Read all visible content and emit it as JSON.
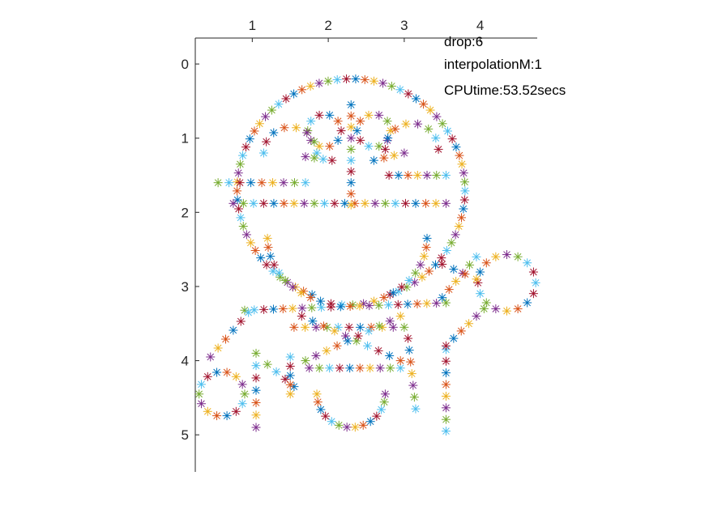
{
  "chart_data": {
    "type": "scatter",
    "title": "",
    "xlabel": "",
    "ylabel": "",
    "xlim": [
      0.25,
      4.75
    ],
    "ylim": [
      -0.35,
      5.5
    ],
    "x_axis_location": "top",
    "y_axis_direction": "reverse",
    "grid": false,
    "legend": "none",
    "marker": "asterisk",
    "xticks": [
      "1",
      "2",
      "3",
      "4"
    ],
    "yticks": [
      "0",
      "1",
      "2",
      "3",
      "4",
      "5"
    ],
    "annotations": [
      "drop:6",
      "interpolationM:1",
      "CPUtime:53.52secs"
    ],
    "colors": [
      "#0072BD",
      "#D95319",
      "#EDB120",
      "#7E2F8E",
      "#77AC30",
      "#4DBEEE",
      "#A2142F"
    ],
    "shapes": [
      {
        "kind": "circle",
        "center": [
          2.3,
          1.7
        ],
        "r": 1.5,
        "from_deg": 110,
        "to_deg": 430,
        "points": 70
      },
      {
        "kind": "ellipse",
        "center": [
          2.25,
          2.35
        ],
        "rx": 1.05,
        "ry": 0.9,
        "from_deg": 0,
        "to_deg": 180,
        "points": 24
      },
      {
        "kind": "line",
        "from": [
          0.75,
          1.88
        ],
        "to": [
          3.55,
          1.88
        ],
        "points": 22
      },
      {
        "kind": "line",
        "from": [
          0.55,
          1.6
        ],
        "to": [
          1.7,
          1.6
        ],
        "points": 9
      },
      {
        "kind": "line",
        "from": [
          2.8,
          1.5
        ],
        "to": [
          3.55,
          1.5
        ],
        "points": 7
      },
      {
        "kind": "circle",
        "center": [
          1.95,
          0.9
        ],
        "r": 0.22,
        "from_deg": 0,
        "to_deg": 360,
        "points": 10
      },
      {
        "kind": "circle",
        "center": [
          2.6,
          0.9
        ],
        "r": 0.22,
        "from_deg": 0,
        "to_deg": 360,
        "points": 10
      },
      {
        "kind": "circle",
        "center": [
          1.5,
          1.2
        ],
        "r": 0.35,
        "from_deg": 180,
        "to_deg": 360,
        "points": 8
      },
      {
        "kind": "circle",
        "center": [
          3.1,
          1.15
        ],
        "r": 0.35,
        "from_deg": 180,
        "to_deg": 360,
        "points": 8
      },
      {
        "kind": "line",
        "from": [
          2.3,
          0.55
        ],
        "to": [
          2.3,
          1.9
        ],
        "points": 10
      },
      {
        "kind": "line",
        "from": [
          1.7,
          1.25
        ],
        "to": [
          2.05,
          1.3
        ],
        "points": 4
      },
      {
        "kind": "line",
        "from": [
          2.6,
          1.3
        ],
        "to": [
          3.0,
          1.2
        ],
        "points": 4
      },
      {
        "kind": "line",
        "from": [
          0.9,
          3.32
        ],
        "to": [
          3.55,
          3.22
        ],
        "points": 22
      },
      {
        "kind": "line",
        "from": [
          0.95,
          3.35
        ],
        "to": [
          0.45,
          3.95
        ],
        "points": 6
      },
      {
        "kind": "circle",
        "center": [
          0.6,
          4.45
        ],
        "r": 0.3,
        "from_deg": 0,
        "to_deg": 360,
        "points": 14
      },
      {
        "kind": "line",
        "from": [
          1.05,
          3.9
        ],
        "to": [
          1.05,
          4.9
        ],
        "points": 7
      },
      {
        "kind": "line",
        "from": [
          1.2,
          4.05
        ],
        "to": [
          1.55,
          4.35
        ],
        "points": 4
      },
      {
        "kind": "line",
        "from": [
          1.55,
          3.55
        ],
        "to": [
          3.0,
          3.55
        ],
        "points": 11
      },
      {
        "kind": "line",
        "from": [
          1.5,
          3.95
        ],
        "to": [
          1.5,
          4.45
        ],
        "points": 5
      },
      {
        "kind": "circle",
        "center": [
          2.3,
          4.45
        ],
        "r": 0.45,
        "from_deg": 0,
        "to_deg": 180,
        "points": 14
      },
      {
        "kind": "line",
        "from": [
          1.75,
          4.1
        ],
        "to": [
          2.95,
          4.1
        ],
        "points": 10
      },
      {
        "kind": "line",
        "from": [
          3.05,
          3.7
        ],
        "to": [
          3.15,
          4.65
        ],
        "points": 7
      },
      {
        "kind": "line",
        "from": [
          1.65,
          3.4
        ],
        "to": [
          2.95,
          4.0
        ],
        "points": 10
      },
      {
        "kind": "line",
        "from": [
          2.95,
          3.4
        ],
        "to": [
          1.7,
          4.0
        ],
        "points": 10
      },
      {
        "kind": "line",
        "from": [
          3.55,
          3.85
        ],
        "to": [
          3.55,
          4.95
        ],
        "points": 8
      },
      {
        "kind": "line",
        "from": [
          3.55,
          3.8
        ],
        "to": [
          4.05,
          3.3
        ],
        "points": 6
      },
      {
        "kind": "circle",
        "center": [
          4.35,
          2.95
        ],
        "r": 0.38,
        "from_deg": 0,
        "to_deg": 360,
        "points": 16
      },
      {
        "kind": "line",
        "from": [
          3.5,
          3.15
        ],
        "to": [
          3.95,
          2.6
        ],
        "points": 6
      },
      {
        "kind": "line",
        "from": [
          3.5,
          2.7
        ],
        "to": [
          3.95,
          2.9
        ],
        "points": 4
      }
    ]
  }
}
